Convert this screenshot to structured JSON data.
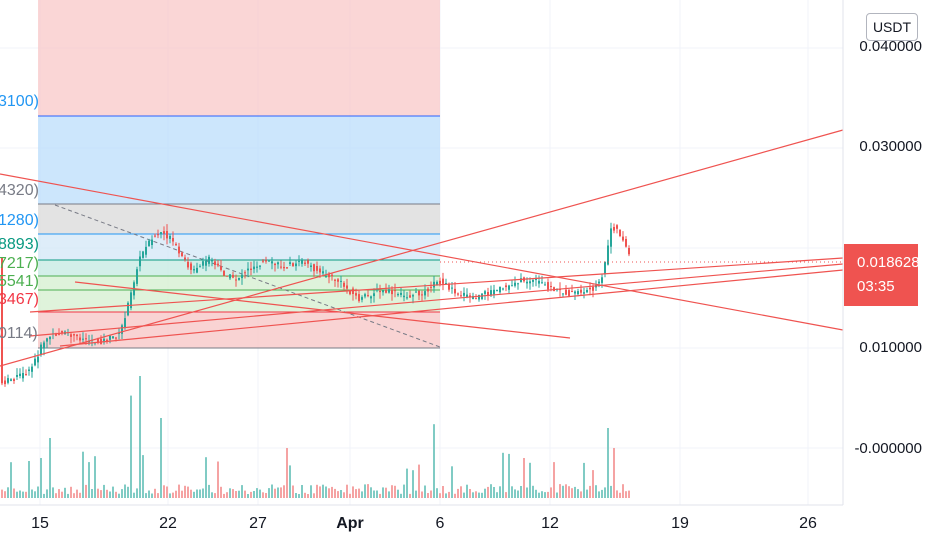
{
  "axis": {
    "currency": "USDT",
    "price_labels": [
      "0.040000",
      "0.030000",
      "0.010000",
      "-0.000000"
    ],
    "current_price": "0.018628",
    "countdown": "03:35",
    "date_labels": [
      "15",
      "22",
      "27",
      "Apr",
      "6",
      "12",
      "19",
      "26"
    ],
    "bold_date": "Apr"
  },
  "fib_labels": [
    {
      "text": "3100)",
      "color": "#2196f3"
    },
    {
      "text": "4320)",
      "color": "#787b86"
    },
    {
      "text": "1280)",
      "color": "#2196f3"
    },
    {
      "text": "8893)",
      "color": "#089981"
    },
    {
      "text": "7217)",
      "color": "#4caf50"
    },
    {
      "text": "5541)",
      "color": "#4caf50"
    },
    {
      "text": "3467)",
      "color": "#f23645"
    },
    {
      "text": "0114)",
      "color": "#787b86"
    }
  ],
  "colors": {
    "up": "#26a69a",
    "down": "#ef5350",
    "trend": "#ef5350"
  }
}
